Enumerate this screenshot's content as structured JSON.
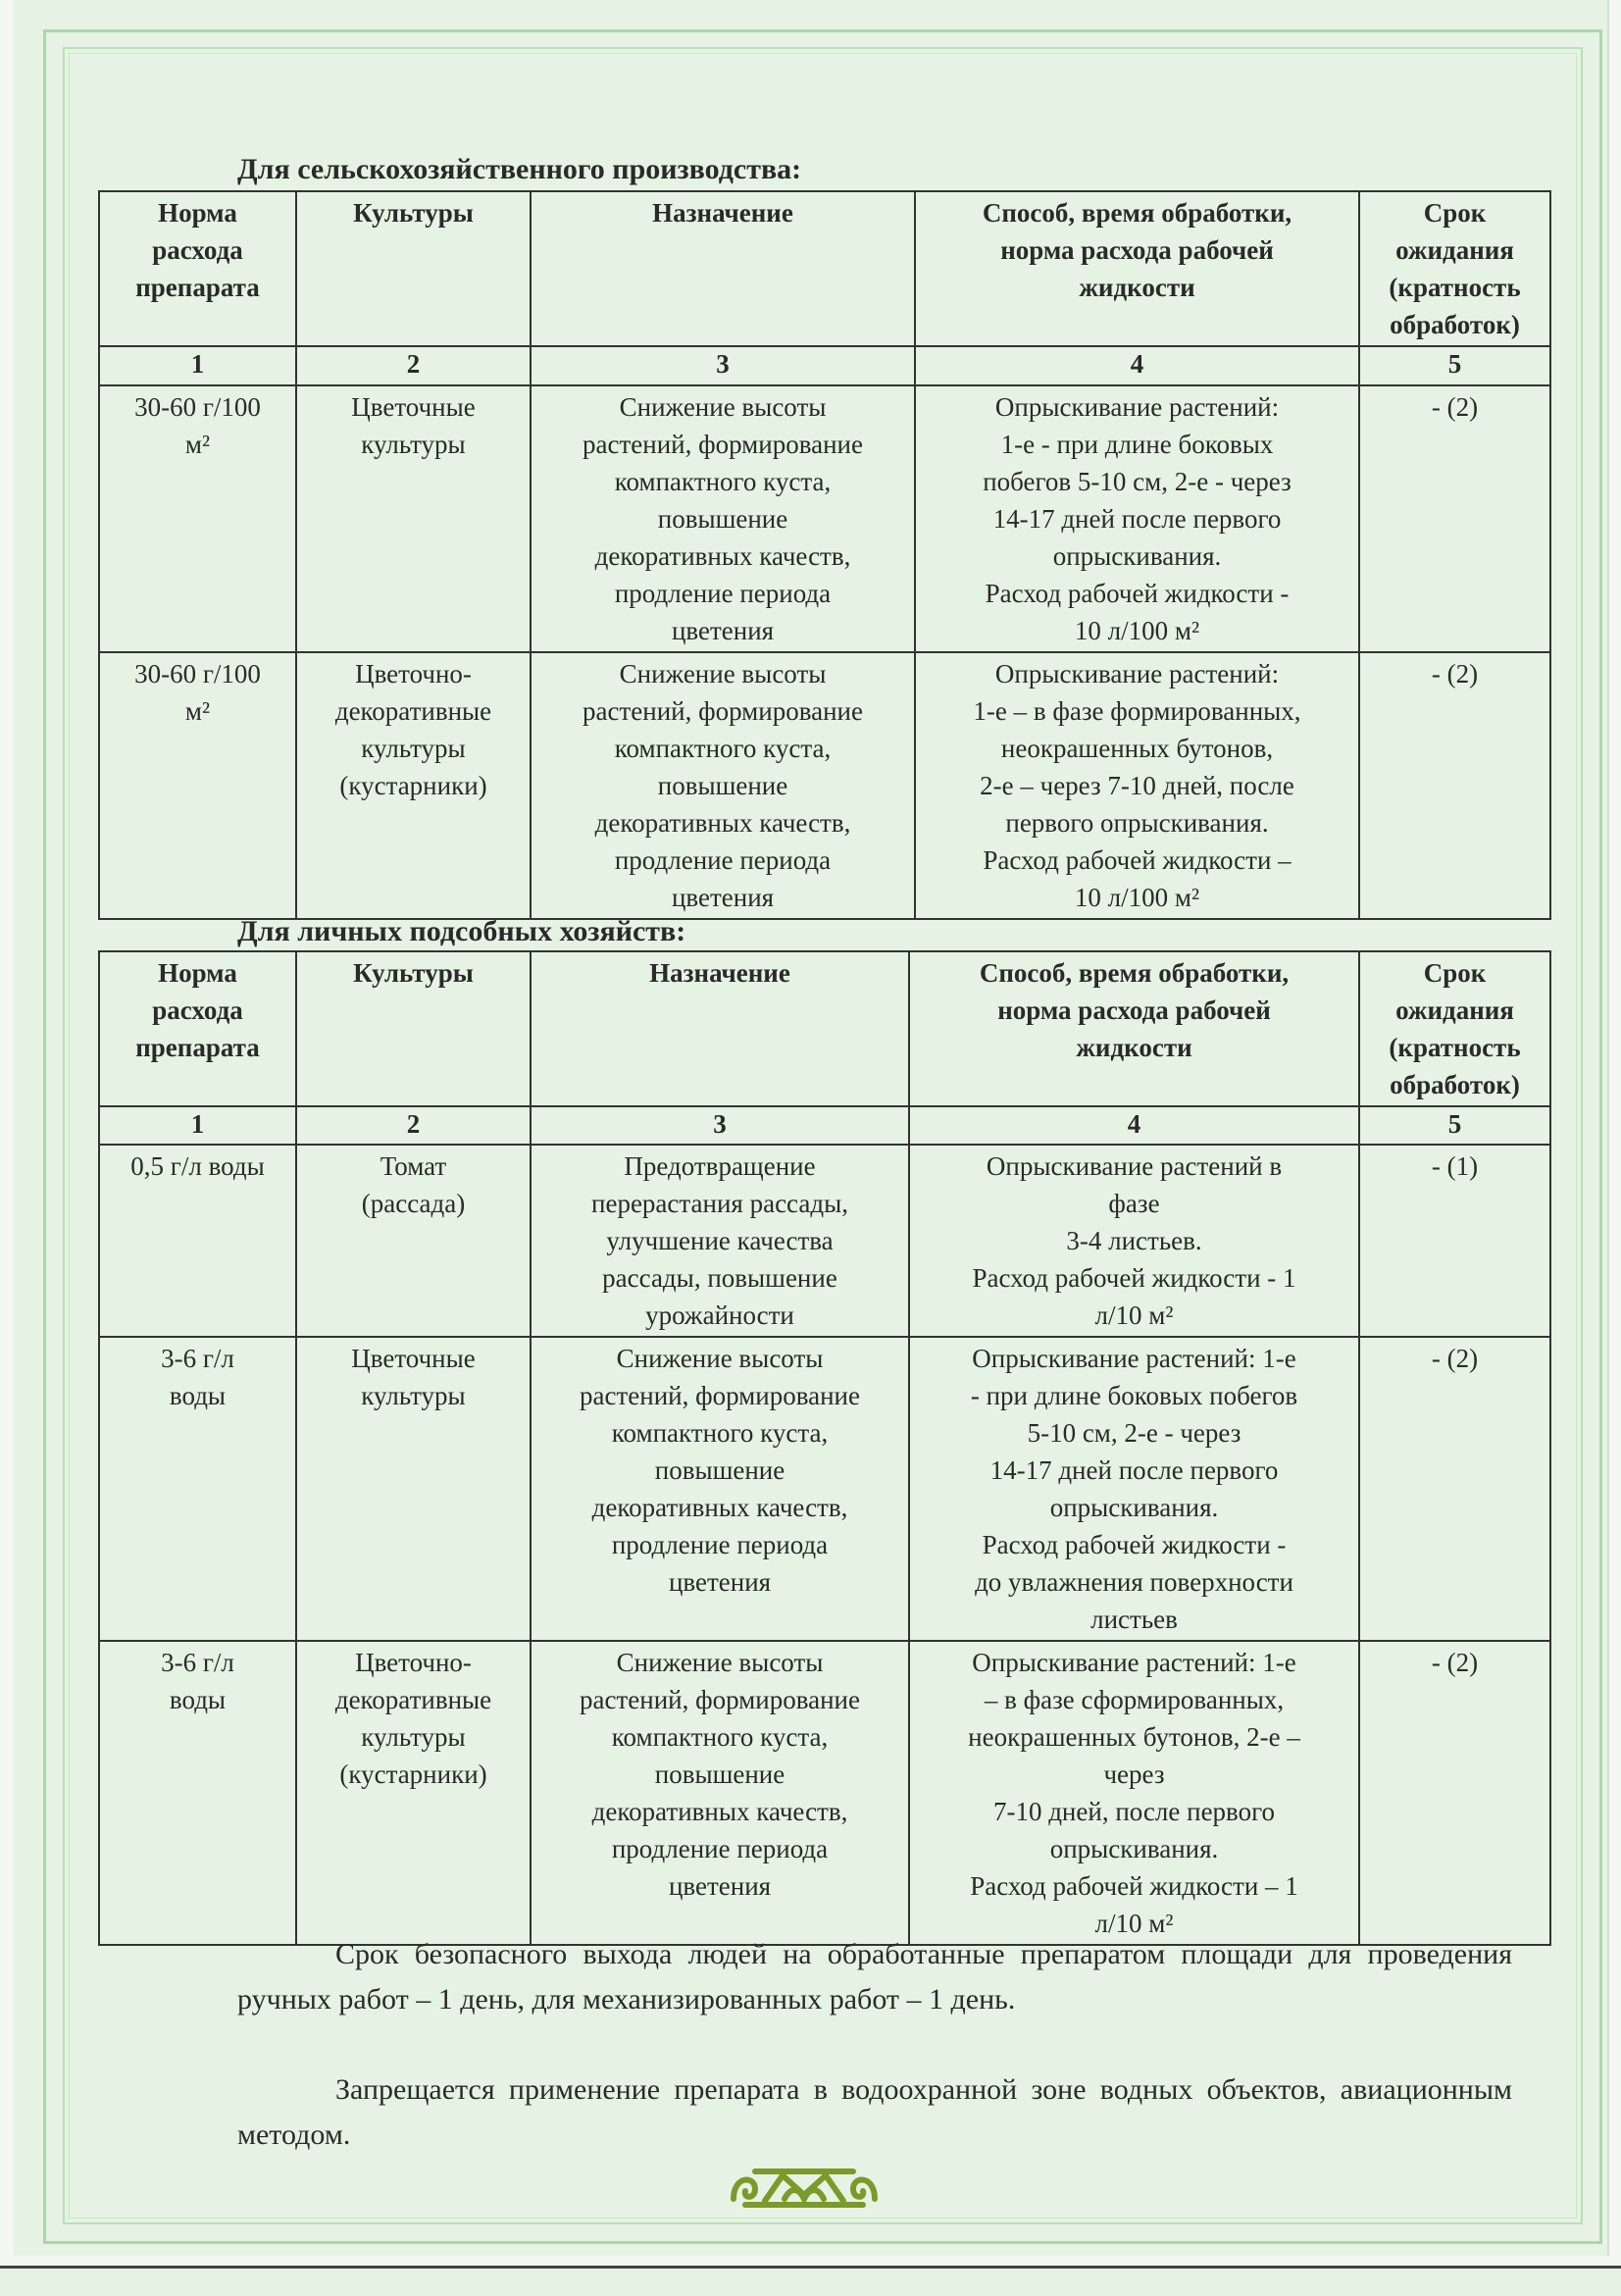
{
  "section1": {
    "title": "Для сельскохозяйственного производства:",
    "headers": [
      "Норма\nрасхода\nпрепарата",
      "Культуры",
      "Назначение",
      "Способ, время обработки,\nнорма расхода рабочей\nжидкости",
      "Срок\nожидания\n(кратность\nобработок)"
    ],
    "numbers": [
      "1",
      "2",
      "3",
      "4",
      "5"
    ],
    "rows": [
      [
        "30-60 г/100\nм²",
        "Цветочные\nкультуры",
        "Снижение высоты\nрастений, формирование\nкомпактного куста,\nповышение\nдекоративных качеств,\nпродление периода\nцветения",
        "Опрыскивание растений:\n1-е - при длине боковых\nпобегов 5-10 см, 2-е - через\n14-17 дней после первого\nопрыскивания.\nРасход рабочей жидкости  -\n10 л/100 м²",
        "- (2)"
      ],
      [
        "30-60 г/100\nм²",
        "Цветочно-\nдекоративные\nкультуры\n(кустарники)",
        "Снижение высоты\nрастений, формирование\nкомпактного куста,\nповышение\nдекоративных качеств,\nпродление периода\nцветения",
        "Опрыскивание растений:\n1-е – в фазе формированных,\nнеокрашенных бутонов,\n2-е – через 7-10 дней, после\nпервого опрыскивания.\nРасход рабочей жидкости –\n10 л/100 м²",
        "- (2)"
      ]
    ]
  },
  "section2": {
    "title": "Для личных подсобных хозяйств:",
    "headers": [
      "Норма\nрасхода\nпрепарата",
      "Культуры",
      "Назначение",
      "Способ, время обработки,\nнорма расхода рабочей\nжидкости",
      "Срок\nожидания\n(кратность\nобработок)"
    ],
    "numbers": [
      "1",
      "2",
      "3",
      "4",
      "5"
    ],
    "rows": [
      [
        "0,5 г/л воды",
        "Томат\n(рассада)",
        "Предотвращение\nперерастания рассады,\nулучшение качества\nрассады, повышение\nурожайности",
        "Опрыскивание растений  в\nфазе\n3-4 листьев.\nРасход рабочей жидкости  - 1\nл/10 м²",
        "- (1)"
      ],
      [
        "3-6 г/л\nводы",
        "Цветочные\nкультуры",
        "Снижение высоты\nрастений, формирование\nкомпактного куста,\nповышение\nдекоративных качеств,\nпродление периода\nцветения",
        "Опрыскивание растений: 1-е\n- при длине боковых побегов\n5-10 см, 2-е - через\n14-17 дней после первого\nопрыскивания.\nРасход рабочей жидкости -\nдо увлажнения поверхности\nлистьев",
        "- (2)"
      ],
      [
        "3-6 г/л\nводы",
        "Цветочно-\nдекоративные\nкультуры\n(кустарники)",
        "Снижение высоты\nрастений, формирование\nкомпактного куста,\nповышение\nдекоративных качеств,\nпродление периода\nцветения",
        "Опрыскивание растений: 1-е\n– в фазе сформированных,\nнеокрашенных бутонов, 2-е –\nчерез\n7-10 дней, после первого\nопрыскивания.\nРасход рабочей жидкости – 1\nл/10 м²",
        "- (2)"
      ]
    ]
  },
  "paragraphs": [
    "Срок безопасного выхода людей на обработанные препаратом площади для проведения ручных работ – 1 день, для механизированных работ – 1 день.",
    "Запрещается применение препарата в водоохранной зоне водных объектов,  авиационным методом."
  ],
  "colors": {
    "background": "#e6f3e4",
    "frame": "#a9d9a6",
    "ornament": "#7a9a2a"
  },
  "ornament_icon": "green-national-ornament"
}
